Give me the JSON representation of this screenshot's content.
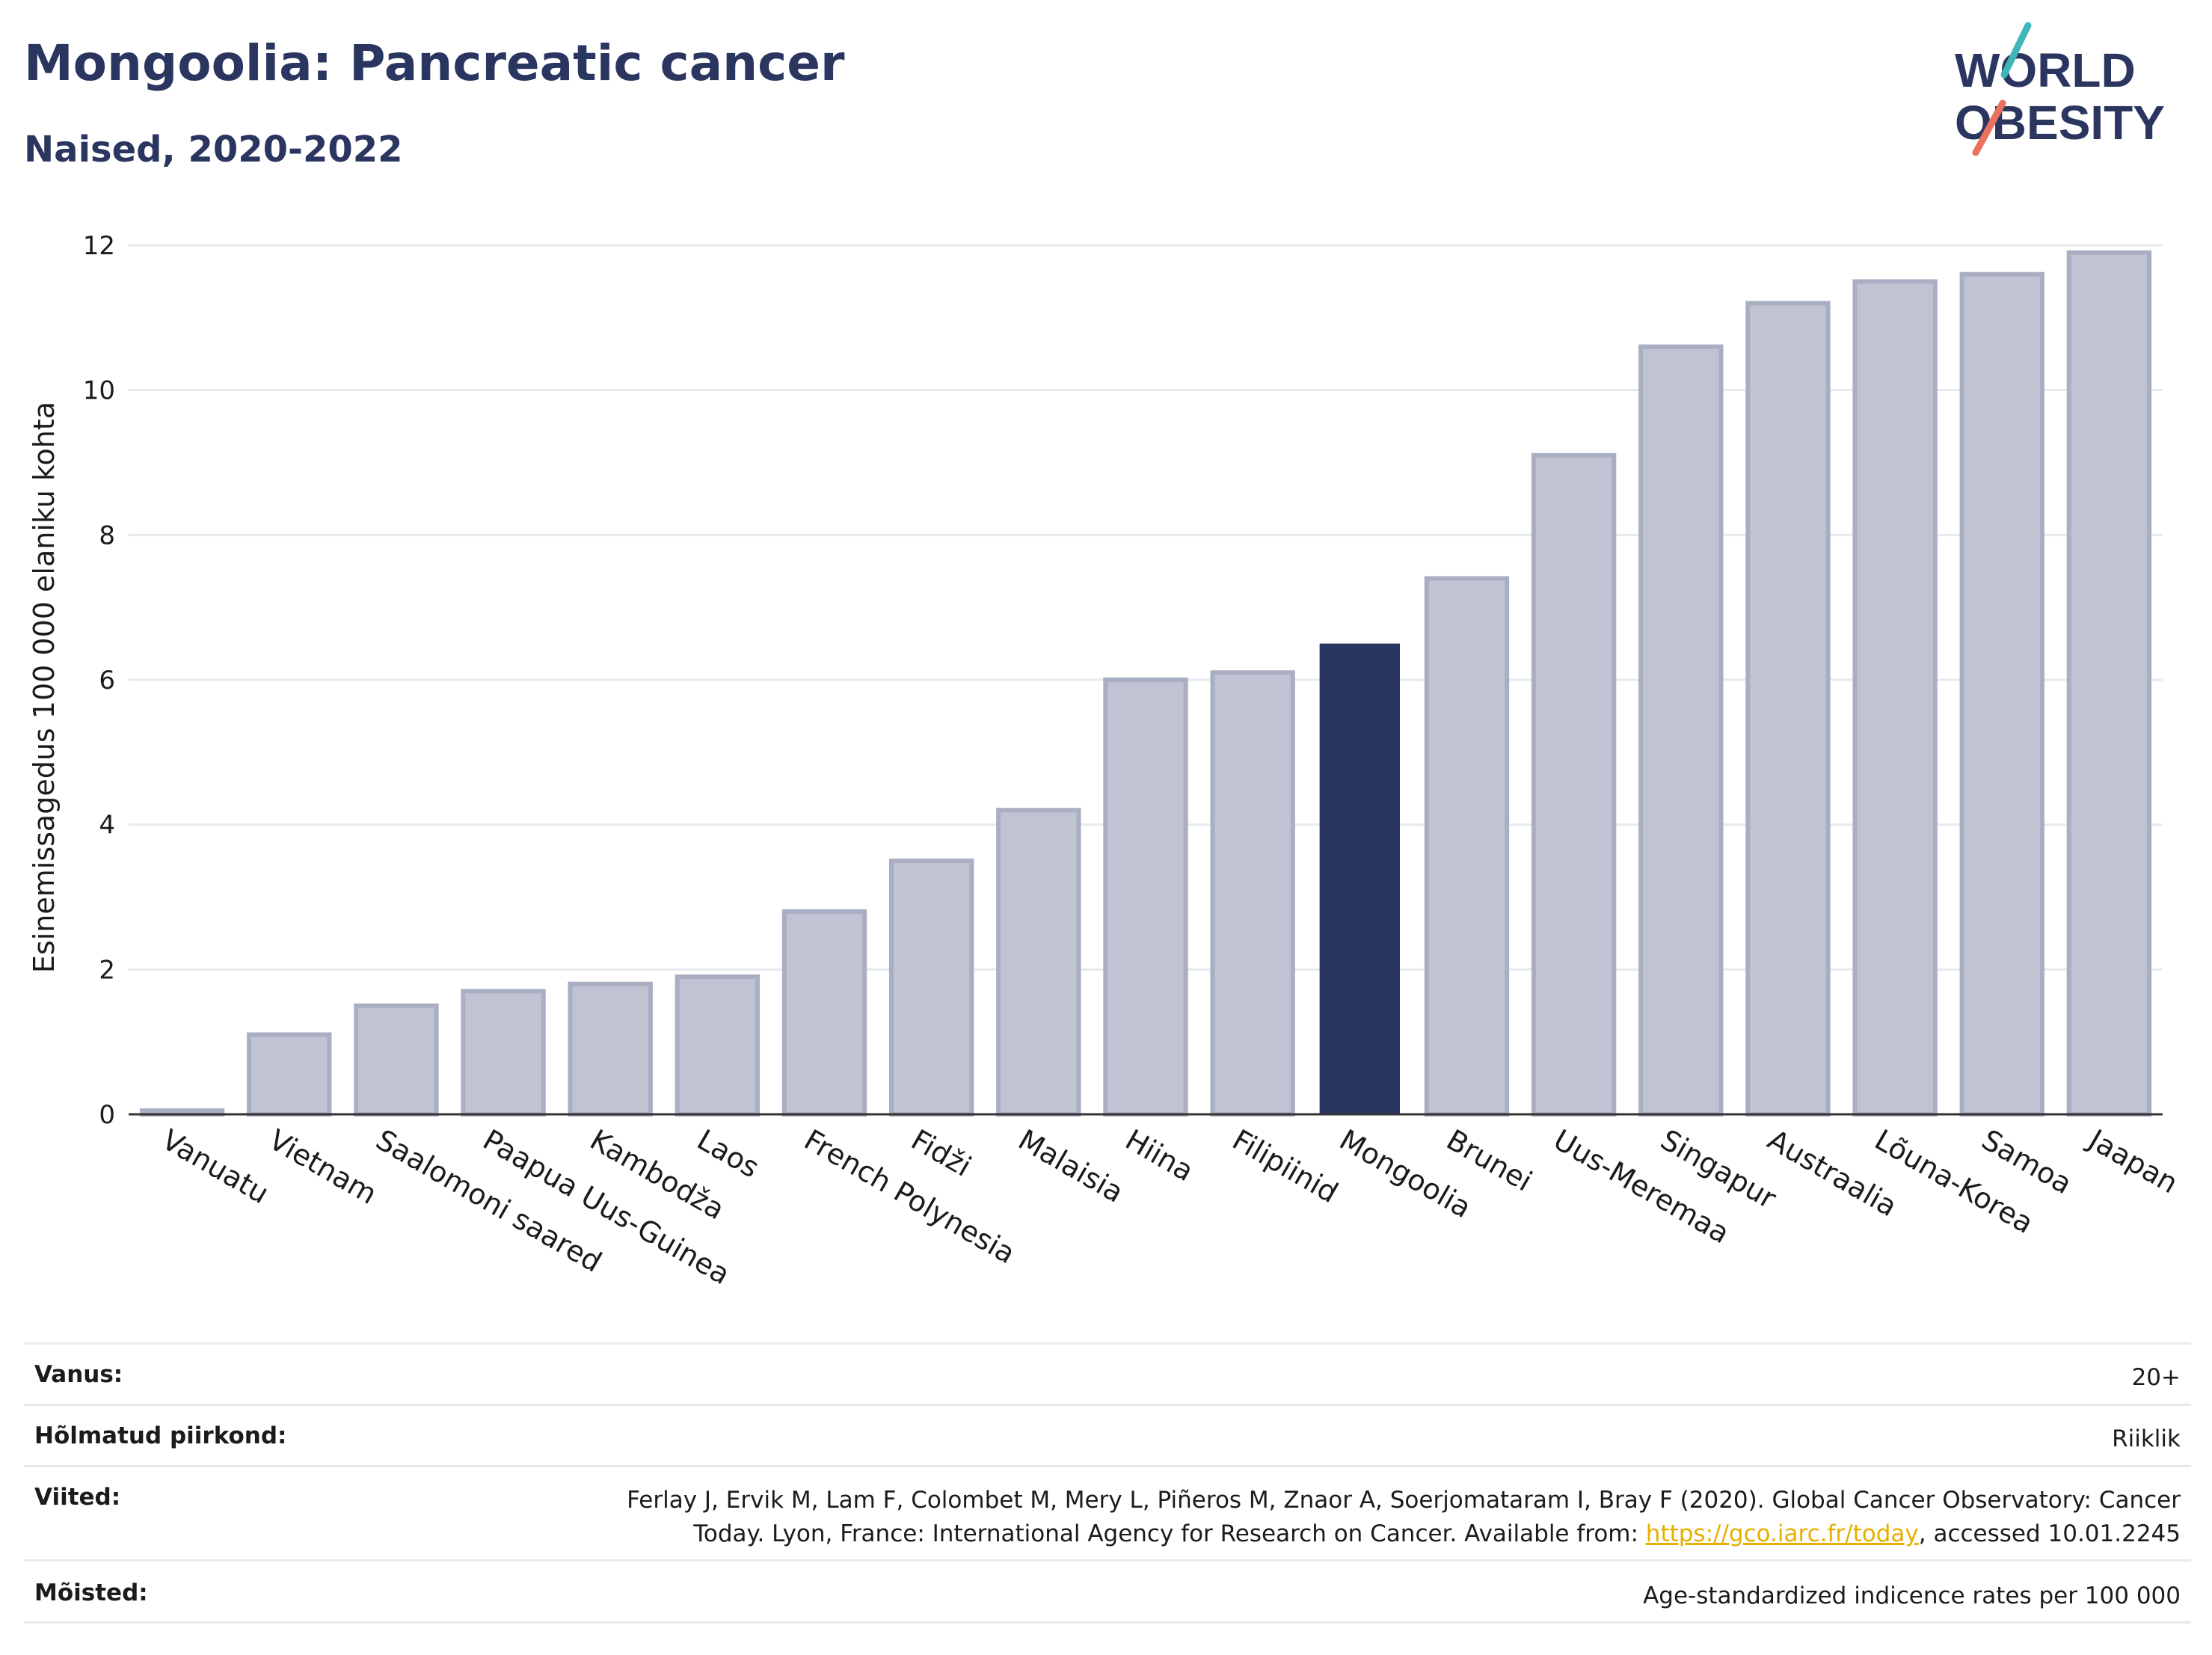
{
  "title": "Mongoolia: Pancreatic cancer",
  "subtitle": "Naised, 2020-2022",
  "logo": {
    "line1": "WORLD",
    "line2": "OBESITY",
    "colors": {
      "text": "#2b3660",
      "slash_top": "#3fb6b8",
      "slash_bottom": "#e8715f"
    }
  },
  "chart_data": {
    "type": "bar",
    "ylabel": "Esinemissagedus 100 000 elaniku kohta",
    "xlabel": "",
    "ylim": [
      0,
      12
    ],
    "yticks": [
      0,
      2,
      4,
      6,
      8,
      10,
      12
    ],
    "grid": true,
    "highlight": "Mongoolia",
    "colors": {
      "bar": "#c0c4d2",
      "bar_edge": "#a9aec2",
      "highlight": "#2b3660",
      "grid": "#e6e9ee",
      "axis": "#333333"
    },
    "categories": [
      "Vanuatu",
      "Vietnam",
      "Saalomoni saared",
      "Paapua Uus-Guinea",
      "Kambodža",
      "Laos",
      "French Polynesia",
      "Fidži",
      "Malaisia",
      "Hiina",
      "Filipiinid",
      "Mongoolia",
      "Brunei",
      "Uus-Meremaa",
      "Singapur",
      "Austraalia",
      "Lõuna-Korea",
      "Samoa",
      "Jaapan"
    ],
    "values": [
      0.05,
      1.1,
      1.5,
      1.7,
      1.8,
      1.9,
      2.8,
      3.5,
      4.2,
      6.0,
      6.1,
      6.5,
      7.4,
      9.1,
      10.6,
      11.2,
      11.5,
      11.6,
      11.9
    ]
  },
  "info": {
    "age": {
      "label": "Vanus:",
      "value": "20+"
    },
    "coverage": {
      "label": "Hõlmatud piirkond:",
      "value": "Riiklik"
    },
    "references": {
      "label": "Viited:",
      "line1": "Ferlay J, Ervik M, Lam F, Colombet M, Mery L, Piñeros M, Znaor A, Soerjomataram I, Bray F (2020). Global Cancer Observatory: Cancer",
      "line2_prefix": "Today. Lyon, France: International Agency for Research on Cancer. Available from: ",
      "link": "https://gco.iarc.fr/today",
      "line2_suffix": ", accessed 10.01.2245"
    },
    "definitions": {
      "label": "Mõisted:",
      "value": "Age-standardized indicence rates per 100 000"
    }
  }
}
